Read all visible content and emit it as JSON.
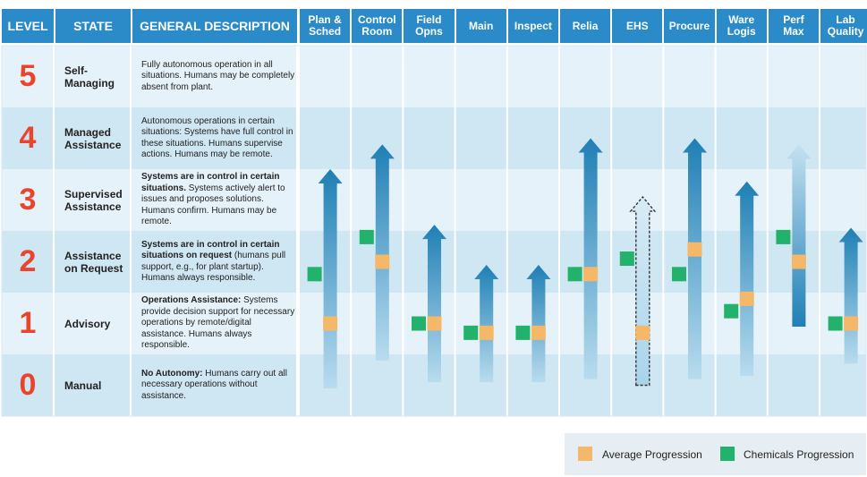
{
  "header": {
    "level": "LEVEL",
    "state": "STATE",
    "description": "GENERAL DESCRIPTION"
  },
  "levels": [
    {
      "number": "5",
      "state": "Self-\nManaging",
      "desc_bold": "",
      "desc_rest": "Fully autonomous operation in all situations. Humans may be completely absent from plant."
    },
    {
      "number": "4",
      "state": "Managed\nAssistance",
      "desc_bold": "",
      "desc_rest": "Autonomous operations in certain situations: Systems have full control in these situations. Humans supervise actions. Humans may be remote."
    },
    {
      "number": "3",
      "state": "Supervised\nAssistance",
      "desc_bold": "Systems are in control in certain situations.",
      "desc_rest": " Systems actively alert to issues and proposes solutions. Humans confirm. Humans may be remote."
    },
    {
      "number": "2",
      "state": "Assistance\non Request",
      "desc_bold": "Systems are in control in certain situations on request",
      "desc_rest": " (humans pull support, e.g., for plant startup). Humans always responsible."
    },
    {
      "number": "1",
      "state": "Advisory",
      "desc_bold": "Operations Assistance:",
      "desc_rest": " Systems provide decision support for necessary operations by remote/digital assistance. Humans always responsible."
    },
    {
      "number": "0",
      "state": "Manual",
      "desc_bold": "No Autonomy:",
      "desc_rest": " Humans carry out all necessary operations without assistance."
    }
  ],
  "chart_data": {
    "type": "bar",
    "categories": [
      "Plan &\nSched",
      "Control\nRoom",
      "Field\nOpns",
      "Main",
      "Inspect",
      "Relia",
      "EHS",
      "Procure",
      "Ware\nLogis",
      "Perf\nMax",
      "Lab\nQuality"
    ],
    "ylim": [
      0,
      5
    ],
    "series": [
      {
        "name": "Average Progression",
        "values": [
          1.0,
          2.0,
          1.0,
          0.85,
          0.85,
          1.8,
          0.85,
          2.2,
          1.4,
          2.0,
          1.0
        ]
      },
      {
        "name": "Chemicals Progression",
        "values": [
          1.8,
          2.4,
          1.0,
          0.85,
          0.85,
          1.8,
          2.05,
          1.8,
          1.2,
          2.4,
          1.0
        ]
      }
    ],
    "arrow_reach": [
      3.5,
      3.9,
      2.6,
      1.95,
      1.95,
      4.0,
      3.05,
      4.0,
      3.3,
      3.9,
      2.55
    ],
    "arrow_base": [
      -0.05,
      0.4,
      0.05,
      0.05,
      0.05,
      0.1,
      0.0,
      0.1,
      0.15,
      0.95,
      0.35
    ],
    "arrow_style": [
      "solid",
      "solid",
      "solid",
      "solid",
      "solid",
      "solid",
      "dashed",
      "solid",
      "solid",
      "reversed",
      "solid"
    ]
  },
  "legend": {
    "average_label": "Average Progression",
    "chemicals_label": "Chemicals Progression"
  },
  "colors": {
    "header": "#2a8bc8",
    "row_light": "#e6f2f9",
    "row_dark": "#cfe6f3",
    "level_number": "#e8452c",
    "average": "#f5b868",
    "chemicals": "#22b26c",
    "arrow_dark": "#1f7fb5",
    "arrow_light": "#b8dcee"
  }
}
